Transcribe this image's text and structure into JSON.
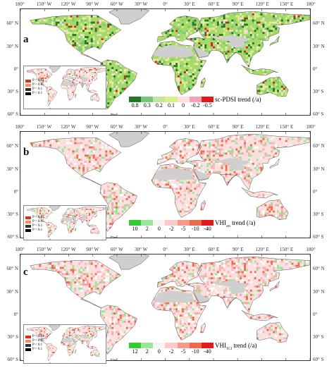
{
  "longitude_ticks": [
    "180°",
    "150° W",
    "120° W",
    "90° W",
    "60° W",
    "30° W",
    "0°",
    "30° E",
    "60° E",
    "90° E",
    "120° E",
    "150° E",
    "180°"
  ],
  "latitude_ticks_left": [
    "60° N",
    "30° N",
    "0°",
    "30° S",
    "60° S"
  ],
  "latitude_ticks_right": [
    "60° N",
    "30° N",
    "0°",
    "30° S",
    "60° S"
  ],
  "colors": {
    "strong_green": "#1f7a1f",
    "light_green": "#a6d96a",
    "yellow_green": "#d9ef8b",
    "pale": "#fbe0e0",
    "pink": "#f4a6a6",
    "red": "#e31a1c",
    "gray": "#cfcfcf",
    "border": "#555555"
  },
  "panels": [
    {
      "letter": "a",
      "legend_title": "sc-PDSI trend (/a)",
      "legend_labels": [
        "0.8",
        "0.3",
        "0.2",
        "0.1",
        "0",
        "-0.2",
        "-0.5"
      ],
      "legend_colors": [
        "#1f7a1f",
        "#78c679",
        "#c2e699",
        "#d9ef8b",
        "#fde0dd",
        "#fa9fb5",
        "#e31a1c"
      ],
      "inset_legend": [
        "P < 0.01",
        "P < 0.05",
        "P < 0.1",
        "P > 0.1"
      ],
      "dominant": "green"
    },
    {
      "letter": "b",
      "legend_title": "VHI",
      "legend_sub": "sm",
      "legend_title_tail": " trend (/a)",
      "legend_labels": [
        "10",
        "2",
        "0",
        "-2",
        "-5",
        "-10",
        "-40"
      ],
      "legend_colors": [
        "#33cc33",
        "#99e699",
        "#f5f5f5",
        "#fbcaca",
        "#f59a8a",
        "#ef6a4a",
        "#e31a1c"
      ],
      "inset_legend": [
        "P < 0.01",
        "P < 0.05",
        "P < 0.1",
        "P > 0.1"
      ],
      "dominant": "pink"
    },
    {
      "letter": "c",
      "legend_title": "VHI",
      "legend_sub": "TCI",
      "legend_title_tail": " trend (/a)",
      "legend_labels": [
        "12",
        "2",
        "0",
        "-2",
        "-5",
        "-10",
        "-40"
      ],
      "legend_colors": [
        "#33cc33",
        "#99e699",
        "#f5f5f5",
        "#fbcaca",
        "#f59a8a",
        "#ef6a4a",
        "#e31a1c"
      ],
      "inset_legend": [
        "P < 0.01",
        "P < 0.05",
        "P < 0.1",
        "P > 0.1"
      ],
      "dominant": "pink"
    }
  ],
  "inset_legend_colors": [
    "#d7301f",
    "#fc8d59",
    "#333333",
    "#000000"
  ]
}
